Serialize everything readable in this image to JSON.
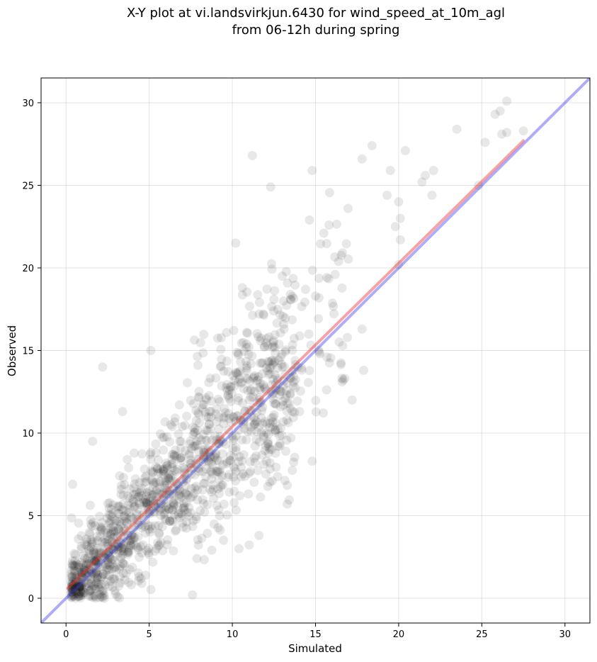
{
  "chart_data": {
    "type": "scatter",
    "title_lines": [
      "X-Y plot at vi.landsvirkjun.6430 for wind_speed_at_10m_agl",
      "from 06-12h during spring"
    ],
    "xlabel": "Simulated",
    "ylabel": "Observed",
    "xlim": [
      -1.5,
      31.5
    ],
    "ylim": [
      -1.5,
      31.5
    ],
    "xticks": [
      "0",
      "5",
      "10",
      "15",
      "20",
      "25",
      "30"
    ],
    "yticks": [
      "0",
      "5",
      "10",
      "15",
      "20",
      "25",
      "30"
    ],
    "grid": true,
    "point_color": "#000000",
    "point_opacity": 0.09,
    "reference_line": {
      "color": "#3333ee",
      "x": [
        -1.5,
        31.5
      ],
      "y": [
        -1.5,
        31.5
      ]
    },
    "fit_line": {
      "color": "#ee3333",
      "x": [
        0.1,
        27.5
      ],
      "y": [
        0.6,
        27.7
      ]
    },
    "outliers": [
      [
        11.2,
        26.8
      ],
      [
        12.3,
        24.9
      ],
      [
        14.8,
        25.9
      ],
      [
        18.4,
        27.4
      ],
      [
        17.8,
        26.6
      ],
      [
        19.5,
        25.9
      ],
      [
        20.4,
        27.1
      ],
      [
        19.3,
        24.4
      ],
      [
        20.0,
        24.0
      ],
      [
        20.1,
        23.0
      ],
      [
        19.8,
        22.5
      ],
      [
        20.1,
        21.7
      ],
      [
        20.0,
        20.2
      ],
      [
        21.6,
        25.6
      ],
      [
        22.1,
        25.9
      ],
      [
        21.4,
        25.2
      ],
      [
        22.0,
        24.4
      ],
      [
        23.5,
        28.4
      ],
      [
        25.2,
        27.6
      ],
      [
        25.8,
        29.3
      ],
      [
        26.1,
        29.5
      ],
      [
        26.5,
        30.1
      ],
      [
        26.2,
        28.1
      ],
      [
        26.5,
        28.2
      ],
      [
        27.5,
        28.3
      ],
      [
        24.8,
        25.0
      ],
      [
        10.2,
        21.5
      ],
      [
        15.5,
        22.1
      ],
      [
        13.0,
        19.5
      ],
      [
        10.6,
        18.8
      ],
      [
        12.5,
        18.1
      ],
      [
        14.4,
        18.7
      ],
      [
        15.0,
        18.3
      ],
      [
        2.2,
        14.0
      ],
      [
        5.1,
        15.0
      ],
      [
        17.9,
        13.8
      ],
      [
        17.2,
        12.0
      ],
      [
        17.8,
        16.3
      ],
      [
        16.6,
        13.1
      ],
      [
        14.8,
        8.3
      ],
      [
        13.3,
        5.7
      ],
      [
        11.6,
        3.8
      ],
      [
        10.4,
        3.0
      ],
      [
        7.6,
        0.2
      ],
      [
        3.1,
        0.1
      ],
      [
        2.3,
        0.0
      ],
      [
        1.0,
        0.5
      ],
      [
        0.4,
        6.9
      ],
      [
        1.6,
        9.5
      ],
      [
        3.4,
        11.3
      ]
    ]
  }
}
